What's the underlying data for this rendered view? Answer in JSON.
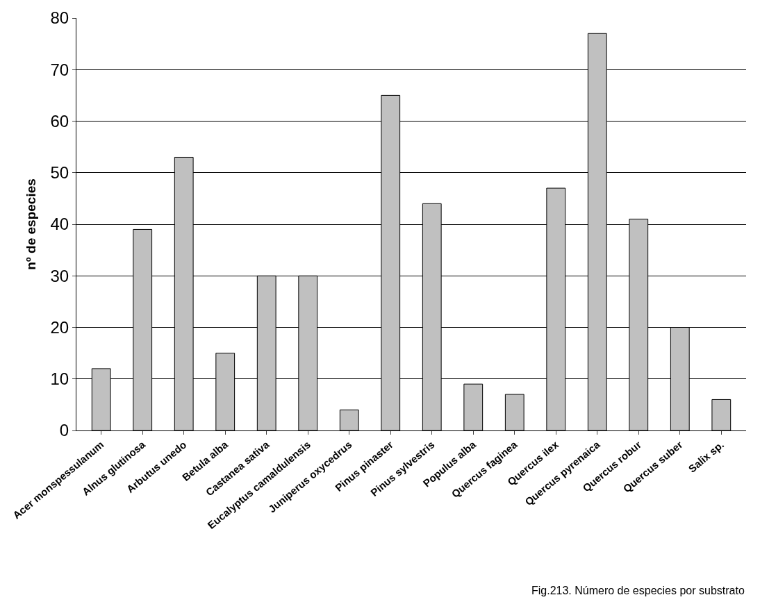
{
  "chart_data": {
    "type": "bar",
    "categories": [
      "Acer monspessulanum",
      "Alnus glutinosa",
      "Arbutus unedo",
      "Betula alba",
      "Castanea sativa",
      "Eucalyptus camaldulensis",
      "Juniperus oxycedrus",
      "Pinus pinaster",
      "Pinus sylvestris",
      "Populus alba",
      "Quercus faginea",
      "Quercus ilex",
      "Quercus pyrenaica",
      "Quercus robur",
      "Quercus suber",
      "Salix sp."
    ],
    "values": [
      12,
      39,
      53,
      15,
      30,
      30,
      4,
      65,
      44,
      9,
      7,
      47,
      77,
      41,
      20,
      6
    ],
    "color": "#c0c0c0",
    "ylabel": "nº de especies",
    "ylim": [
      0,
      80
    ],
    "yticks": [
      0,
      10,
      20,
      30,
      40,
      50,
      60,
      70,
      80
    ],
    "grid": "y",
    "legend": false,
    "annotations": [
      "Fig.213. Número de especies por substrato"
    ]
  }
}
